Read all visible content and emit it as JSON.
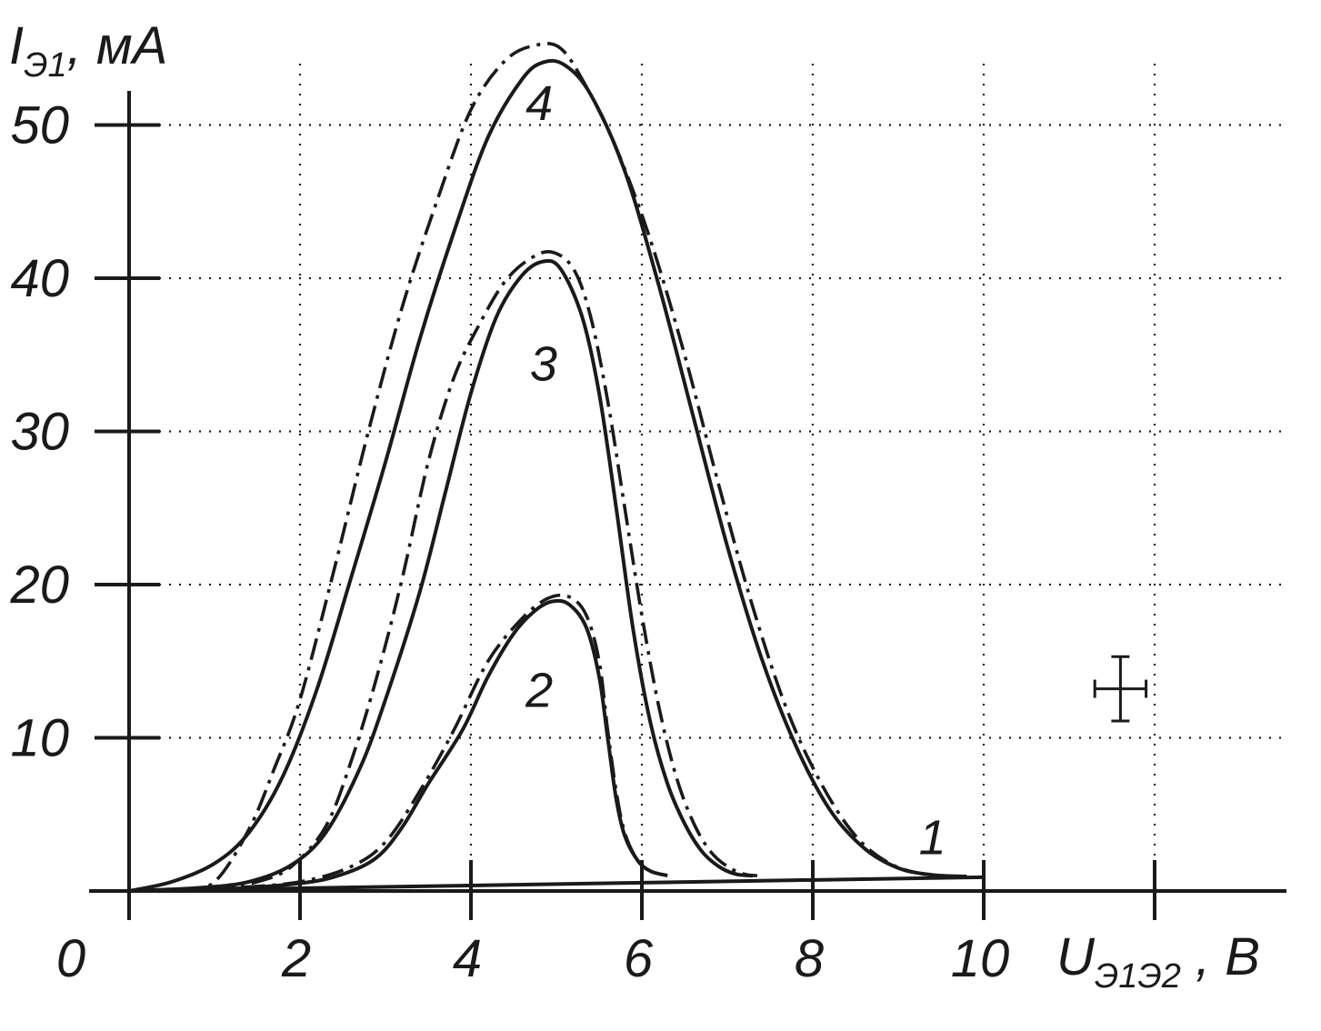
{
  "chart_data": {
    "type": "line",
    "y_axis": {
      "symbol": "I",
      "subscript": "Э1",
      "unit": ", мА"
    },
    "x_axis": {
      "symbol": "U",
      "subscript": "Э1Э2",
      "unit": " , В"
    },
    "x_ticks": [
      "0",
      "2",
      "4",
      "6",
      "8",
      "10"
    ],
    "y_ticks": [
      "10",
      "20",
      "30",
      "40",
      "50"
    ],
    "xlim": [
      0,
      12.9
    ],
    "ylim": [
      0,
      55
    ],
    "grid": true,
    "error_bar": {
      "x": 11.6,
      "y": 13.2,
      "x_err": 0.3,
      "y_err": 2.1
    },
    "series": [
      {
        "label": "1",
        "label_at": [
          9.4,
          3.6
        ],
        "solid": [
          [
            0,
            0
          ],
          [
            10,
            0.9
          ]
        ],
        "dashdot": null
      },
      {
        "label": "2",
        "label_at": [
          4.8,
          13.2
        ],
        "solid": [
          [
            0,
            0
          ],
          [
            1,
            0.1
          ],
          [
            2,
            0.5
          ],
          [
            2.5,
            1.1
          ],
          [
            2.9,
            2.2
          ],
          [
            3.2,
            4.2
          ],
          [
            3.5,
            7
          ],
          [
            3.9,
            10.5
          ],
          [
            4.2,
            14
          ],
          [
            4.5,
            16.8
          ],
          [
            4.75,
            18.3
          ],
          [
            4.95,
            18.9
          ],
          [
            5.15,
            18.7
          ],
          [
            5.35,
            17.2
          ],
          [
            5.5,
            14
          ],
          [
            5.6,
            10
          ],
          [
            5.7,
            6
          ],
          [
            5.8,
            3.6
          ],
          [
            5.95,
            2
          ],
          [
            6.1,
            1.3
          ],
          [
            6.3,
            1
          ]
        ],
        "dashdot": [
          [
            0.4,
            0
          ],
          [
            1.2,
            0.2
          ],
          [
            2,
            0.6
          ],
          [
            2.6,
            1.6
          ],
          [
            3,
            3.2
          ],
          [
            3.4,
            6.5
          ],
          [
            3.8,
            10.5
          ],
          [
            4.2,
            15
          ],
          [
            4.6,
            17.8
          ],
          [
            4.9,
            19.1
          ],
          [
            5.15,
            19.2
          ],
          [
            5.35,
            18
          ],
          [
            5.5,
            15
          ],
          [
            5.6,
            10.5
          ],
          [
            5.7,
            6.5
          ],
          [
            5.8,
            3.8
          ],
          [
            5.95,
            2
          ],
          [
            6.1,
            1.3
          ],
          [
            6.3,
            1
          ]
        ]
      },
      {
        "label": "3",
        "label_at": [
          4.85,
          34.5
        ],
        "solid": [
          [
            0,
            0
          ],
          [
            0.8,
            0.2
          ],
          [
            1.4,
            0.6
          ],
          [
            1.9,
            1.7
          ],
          [
            2.3,
            3.8
          ],
          [
            2.7,
            8
          ],
          [
            3,
            12.5
          ],
          [
            3.4,
            19.5
          ],
          [
            3.7,
            26
          ],
          [
            4,
            32.5
          ],
          [
            4.3,
            37.5
          ],
          [
            4.6,
            40.2
          ],
          [
            4.85,
            41.1
          ],
          [
            5.05,
            40.6
          ],
          [
            5.3,
            37.5
          ],
          [
            5.5,
            32.5
          ],
          [
            5.7,
            25
          ],
          [
            5.9,
            17
          ],
          [
            6.1,
            11
          ],
          [
            6.3,
            7
          ],
          [
            6.5,
            4.4
          ],
          [
            6.7,
            2.6
          ],
          [
            6.9,
            1.6
          ],
          [
            7.1,
            1.1
          ],
          [
            7.3,
            1
          ]
        ],
        "dashdot": [
          [
            0.5,
            0
          ],
          [
            1,
            0.2
          ],
          [
            1.5,
            0.6
          ],
          [
            1.9,
            1.6
          ],
          [
            2.3,
            4.2
          ],
          [
            2.6,
            8.5
          ],
          [
            2.9,
            14
          ],
          [
            3.2,
            20.5
          ],
          [
            3.5,
            28
          ],
          [
            3.8,
            33.5
          ],
          [
            4.1,
            37
          ],
          [
            4.4,
            39.8
          ],
          [
            4.7,
            41.3
          ],
          [
            4.95,
            41.7
          ],
          [
            5.2,
            40.6
          ],
          [
            5.4,
            37.5
          ],
          [
            5.6,
            32
          ],
          [
            5.8,
            25
          ],
          [
            6,
            18
          ],
          [
            6.2,
            12
          ],
          [
            6.4,
            7.5
          ],
          [
            6.6,
            4.5
          ],
          [
            6.8,
            2.6
          ],
          [
            7,
            1.6
          ],
          [
            7.2,
            1.1
          ],
          [
            7.35,
            1
          ]
        ]
      },
      {
        "label": "4",
        "label_at": [
          4.8,
          51.5
        ],
        "solid": [
          [
            0,
            0
          ],
          [
            0.5,
            0.6
          ],
          [
            1,
            1.8
          ],
          [
            1.4,
            3.8
          ],
          [
            1.8,
            7.5
          ],
          [
            2.2,
            13.2
          ],
          [
            2.6,
            20.5
          ],
          [
            3,
            28
          ],
          [
            3.4,
            36
          ],
          [
            3.8,
            43
          ],
          [
            4.2,
            49.2
          ],
          [
            4.6,
            53
          ],
          [
            4.85,
            54.1
          ],
          [
            5.1,
            53.9
          ],
          [
            5.4,
            52
          ],
          [
            5.8,
            47
          ],
          [
            6.2,
            39.5
          ],
          [
            6.6,
            31
          ],
          [
            7,
            22.5
          ],
          [
            7.4,
            15.2
          ],
          [
            7.8,
            9.5
          ],
          [
            8.2,
            5.3
          ],
          [
            8.6,
            2.8
          ],
          [
            9,
            1.5
          ],
          [
            9.4,
            1.05
          ],
          [
            9.8,
            0.95
          ]
        ],
        "dashdot": [
          [
            0.6,
            0
          ],
          [
            1,
            0.6
          ],
          [
            1.4,
            4
          ],
          [
            1.7,
            8
          ],
          [
            2,
            12.5
          ],
          [
            2.4,
            21
          ],
          [
            2.8,
            30
          ],
          [
            3.2,
            38.2
          ],
          [
            3.6,
            45
          ],
          [
            4,
            51
          ],
          [
            4.4,
            54.2
          ],
          [
            4.75,
            55.2
          ],
          [
            5.05,
            55
          ],
          [
            5.35,
            52.5
          ],
          [
            5.7,
            48.5
          ],
          [
            6.1,
            42.5
          ],
          [
            6.5,
            35
          ],
          [
            6.9,
            26.5
          ],
          [
            7.3,
            18.5
          ],
          [
            7.7,
            11.8
          ],
          [
            8.1,
            7
          ],
          [
            8.5,
            3.6
          ],
          [
            8.9,
            1.8
          ],
          [
            9.3,
            1.1
          ],
          [
            9.7,
            0.95
          ]
        ]
      }
    ]
  }
}
